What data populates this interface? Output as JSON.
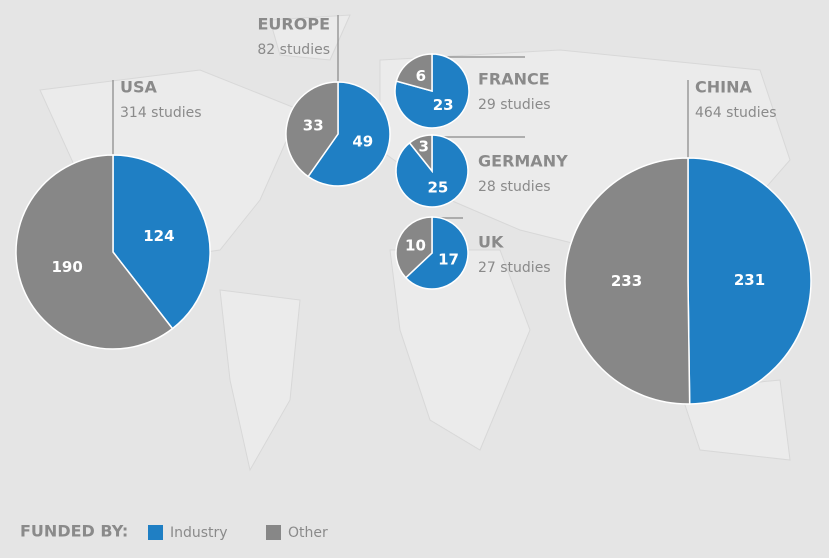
{
  "legend_title": "FUNDED BY:",
  "categories": [
    "Industry",
    "Other"
  ],
  "colors": [
    "#1f7fc4",
    "#878787"
  ],
  "chart_data": [
    {
      "type": "pie",
      "title": "USA",
      "subtitle": "314 studies",
      "values": [
        124,
        190
      ]
    },
    {
      "type": "pie",
      "title": "EUROPE",
      "subtitle": "82 studies",
      "values": [
        49,
        33
      ]
    },
    {
      "type": "pie",
      "title": "FRANCE",
      "subtitle": "29 studies",
      "values": [
        23,
        6
      ]
    },
    {
      "type": "pie",
      "title": "GERMANY",
      "subtitle": "28 studies",
      "values": [
        25,
        3
      ]
    },
    {
      "type": "pie",
      "title": "UK",
      "subtitle": "27 studies",
      "values": [
        17,
        10
      ]
    },
    {
      "type": "pie",
      "title": "CHINA",
      "subtitle": "464 studies",
      "values": [
        231,
        233
      ]
    }
  ]
}
